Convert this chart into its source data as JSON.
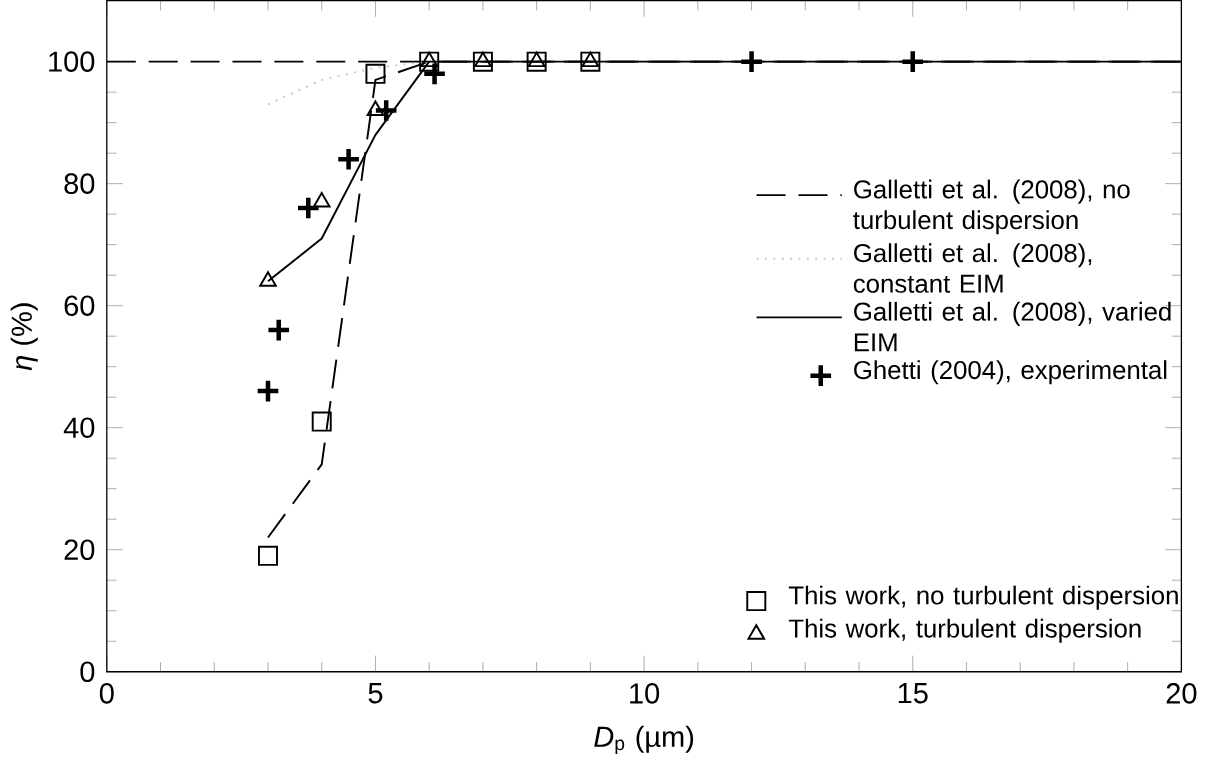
{
  "chart_data": {
    "type": "line",
    "xlabel": "*D*$_{p}$ (µm)",
    "ylabel": "*η* (%)",
    "xlim": [
      0,
      20
    ],
    "ylim": [
      0,
      110
    ],
    "xticks": [
      0,
      5,
      10,
      15,
      20
    ],
    "yticks": [
      0,
      20,
      40,
      60,
      80,
      100
    ],
    "legend": "right",
    "grid": false,
    "ref_lines": [
      {
        "axis": "y",
        "value": 100,
        "line_style": "dashed",
        "color": "#000000"
      }
    ],
    "series": [
      {
        "name": "Galletti et al. (2008), no turbulent dispersion",
        "line_style": "dashed",
        "marker": "none",
        "color": "#000000",
        "x": [
          3,
          4,
          5,
          6,
          20
        ],
        "values": [
          22,
          34,
          97,
          100,
          100
        ]
      },
      {
        "name": "Galletti et al. (2008), constant EIM",
        "line_style": "dotted",
        "marker": "none",
        "color": "#c8c8c8",
        "x": [
          3,
          4,
          5,
          6
        ],
        "values": [
          93,
          97,
          99,
          100
        ]
      },
      {
        "name": "Galletti et al. (2008), varied EIM",
        "line_style": "solid",
        "marker": "none",
        "color": "#000000",
        "x": [
          3,
          4,
          5,
          6,
          20
        ],
        "values": [
          64,
          71,
          88,
          100,
          100
        ]
      },
      {
        "name": "Ghetti (2004), experimental",
        "type": "scatter",
        "marker": "cross",
        "color": "#000000",
        "x": [
          3,
          3.2,
          3.75,
          4.5,
          5.2,
          6.1,
          12,
          15
        ],
        "values": [
          46,
          56,
          76,
          84,
          92,
          98,
          100,
          100
        ]
      },
      {
        "name": "This work, no turbulent dispersion",
        "type": "scatter",
        "marker": "square",
        "color": "#000000",
        "x": [
          3,
          4,
          5,
          6,
          7,
          8,
          9
        ],
        "values": [
          19,
          41,
          98,
          100,
          100,
          100,
          100
        ]
      },
      {
        "name": "This work, turbulent dispersion",
        "type": "scatter",
        "marker": "triangle",
        "color": "#000000",
        "x": [
          3,
          4,
          5,
          6,
          7,
          8,
          9
        ],
        "values": [
          64,
          77,
          92,
          100,
          100,
          100,
          100
        ]
      }
    ]
  }
}
